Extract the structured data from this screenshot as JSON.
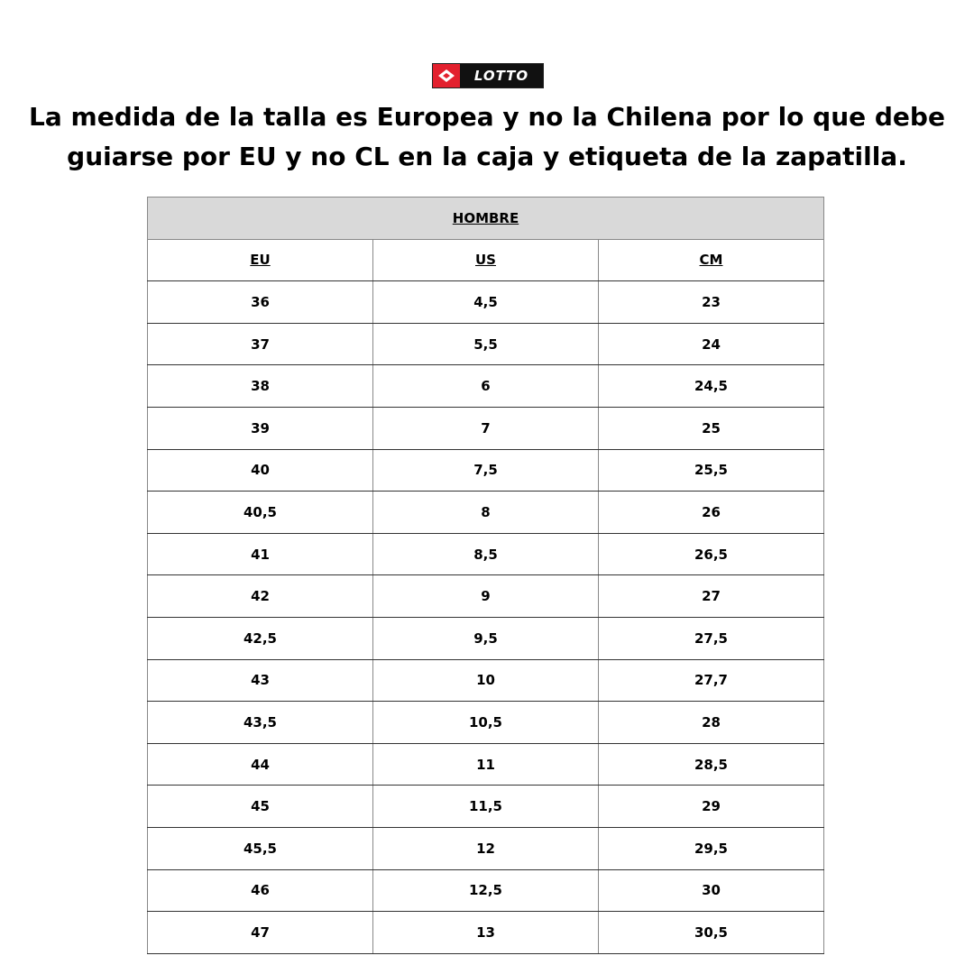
{
  "logo": {
    "text": "LOTTO",
    "colors": {
      "red": "#e3202e",
      "black": "#111111"
    }
  },
  "title": "La medida de la talla es Europea y no la Chilena por lo que debe guiarse por EU y no CL en la caja y etiqueta de la zapatilla.",
  "table": {
    "section": "HOMBRE",
    "columns": [
      "EU",
      "US",
      "CM"
    ],
    "rows": [
      [
        "36",
        "4,5",
        "23"
      ],
      [
        "37",
        "5,5",
        "24"
      ],
      [
        "38",
        "6",
        "24,5"
      ],
      [
        "39",
        "7",
        "25"
      ],
      [
        "40",
        "7,5",
        "25,5"
      ],
      [
        "40,5",
        "8",
        "26"
      ],
      [
        "41",
        "8,5",
        "26,5"
      ],
      [
        "42",
        "9",
        "27"
      ],
      [
        "42,5",
        "9,5",
        "27,5"
      ],
      [
        "43",
        "10",
        "27,7"
      ],
      [
        "43,5",
        "10,5",
        "28"
      ],
      [
        "44",
        "11",
        "28,5"
      ],
      [
        "45",
        "11,5",
        "29"
      ],
      [
        "45,5",
        "12",
        "29,5"
      ],
      [
        "46",
        "12,5",
        "30"
      ],
      [
        "47",
        "13",
        "30,5"
      ]
    ]
  }
}
